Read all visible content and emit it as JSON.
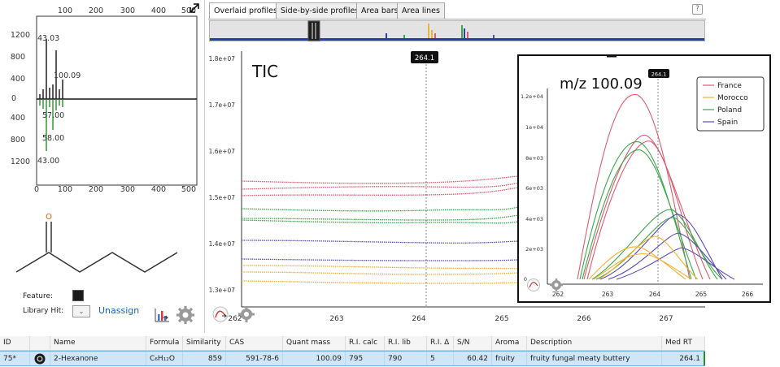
{
  "tabs": [
    {
      "label": "Overlaid profiles",
      "active": true
    },
    {
      "label": "Side-by-side profiles",
      "active": false
    },
    {
      "label": "Area bars",
      "active": false
    },
    {
      "label": "Area lines",
      "active": false
    }
  ],
  "help_label": "?",
  "mirror": {
    "x_ticks": [
      "100",
      "200",
      "300",
      "400",
      "500"
    ],
    "x_ticks_bottom": [
      "0",
      "100",
      "200",
      "300",
      "400",
      "500"
    ],
    "y_ticks": [
      "1200",
      "800",
      "400",
      "0",
      "400",
      "800",
      "1200"
    ],
    "peak_labels_top": [
      "43.03",
      "100.09"
    ],
    "peak_labels_bottom": [
      "57.00",
      "58.00",
      "43.00"
    ]
  },
  "structure": {
    "atom_label": "O"
  },
  "feature_label": "Feature:",
  "library_hit_label": "Library Hit:",
  "library_hit_select": "⌄",
  "unassign_label": "Unassign",
  "main_chart": {
    "title": "TIC",
    "marker_label": "264.1",
    "y_ticks": [
      "1.8e+07",
      "1.7e+07",
      "1.6e+07",
      "1.5e+07",
      "1.4e+07",
      "1.3e+07"
    ],
    "x_ticks": [
      "262",
      "263",
      "264",
      "265",
      "266",
      "267"
    ]
  },
  "inset": {
    "title": "m/z 100.09",
    "marker_label": "264.1",
    "y_ticks": [
      "1.2e+04",
      "1e+04",
      "8e+03",
      "6e+03",
      "4e+03",
      "2e+03",
      "0"
    ],
    "x_ticks": [
      "262",
      "263",
      "264",
      "265",
      "266"
    ],
    "legend": [
      {
        "name": "France",
        "color": "#e05a6e"
      },
      {
        "name": "Morocco",
        "color": "#f4b030"
      },
      {
        "name": "Poland",
        "color": "#3aa84a"
      },
      {
        "name": "Spain",
        "color": "#5a4db5"
      }
    ]
  },
  "table": {
    "headers": [
      "ID",
      "",
      "Name",
      "Formula",
      "Similarity",
      "CAS",
      "Quant mass",
      "R.I. calc",
      "R.I. lib",
      "R.I. Δ",
      "S/N",
      "Aroma",
      "Description",
      "Med RT"
    ],
    "row": {
      "id": "75*",
      "name": "2-Hexanone",
      "formula": "C₆H₁₂O",
      "similarity": "859",
      "cas": "591-78-6",
      "quant_mass": "100.09",
      "ri_calc": "795",
      "ri_lib": "790",
      "ri_delta": "5",
      "sn": "60.42",
      "aroma": "fruity",
      "description": "fruity fungal meaty buttery",
      "med_rt": "264.1"
    }
  }
}
